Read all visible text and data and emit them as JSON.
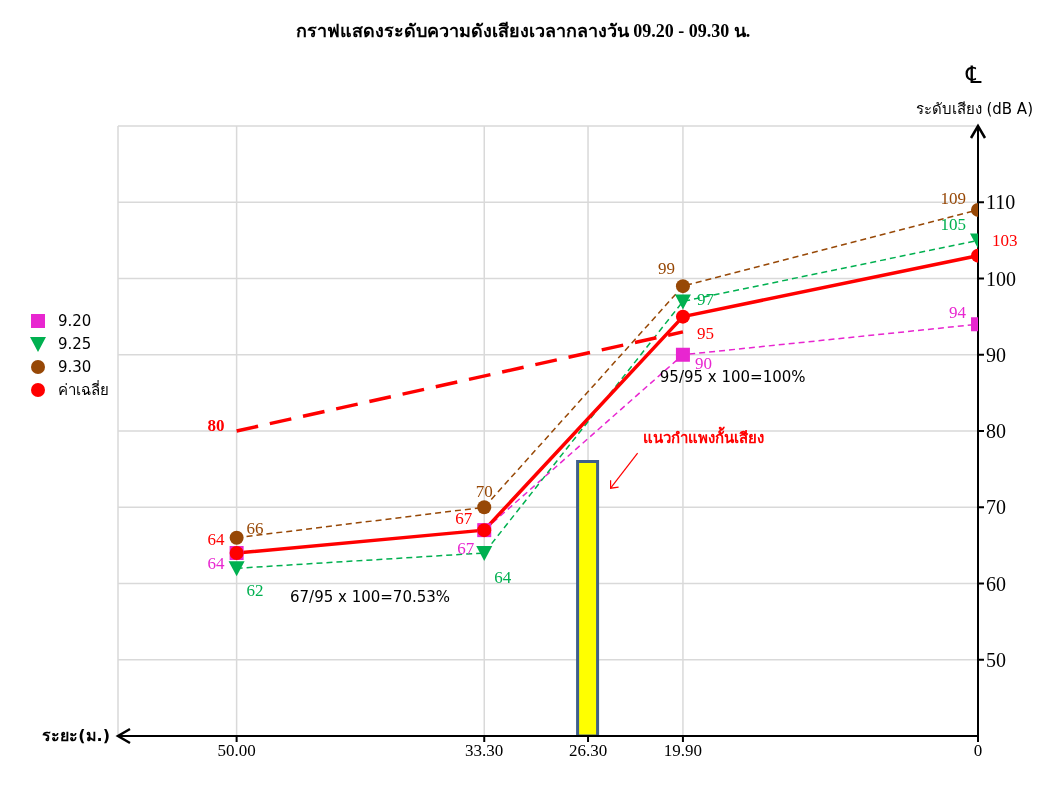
{
  "chart_data": {
    "type": "line",
    "title": "กราฟแสดงระดับความดังเสียงเวลากลางวัน 09.20 - 09.30 น.",
    "xlabel": "ระยะ(ม.)",
    "ylabel": "ระดับเสียง (dB A)",
    "xlim": [
      58,
      0
    ],
    "xticks": [
      {
        "value": 50,
        "label": "50.00"
      },
      {
        "value": 33.3,
        "label": "33.30"
      },
      {
        "value": 26.3,
        "label": "26.30"
      },
      {
        "value": 19.9,
        "label": "19.90"
      },
      0
    ],
    "ylim": [
      40,
      120
    ],
    "yticks": [
      50,
      60,
      70,
      80,
      90,
      100,
      110
    ],
    "grid": true,
    "legend": "left",
    "series": [
      {
        "name": "9.20",
        "color": "#e826d0",
        "x": [
          50,
          33.3,
          19.9,
          0
        ],
        "values": [
          64,
          67,
          90,
          94
        ],
        "value_labels": [
          "64",
          "67",
          "90",
          "94"
        ],
        "marker": "square",
        "line_style": "dashed"
      },
      {
        "name": "9.25",
        "color": "#00b050",
        "x": [
          50,
          33.3,
          19.9,
          0
        ],
        "values": [
          62,
          64,
          97,
          105
        ],
        "value_labels": [
          "62",
          "64",
          "97",
          "105"
        ],
        "marker": "triangle",
        "line_style": "dashed"
      },
      {
        "name": "9.30",
        "color": "#974806",
        "x": [
          50,
          33.3,
          19.9,
          0
        ],
        "values": [
          66,
          70,
          99,
          109
        ],
        "value_labels": [
          "66",
          "70",
          "99",
          "109"
        ],
        "marker": "circle",
        "line_style": "dashed"
      },
      {
        "name": "ค่าเฉลี่ย",
        "color": "#ff0000",
        "x": [
          50,
          33.3,
          19.9,
          0
        ],
        "values": [
          64,
          67,
          95,
          103
        ],
        "value_labels": [
          "64",
          "67",
          "95",
          "103"
        ],
        "marker": "circle",
        "line_style": "solid"
      },
      {
        "color": "#ff0000",
        "x": [
          50,
          19.9
        ],
        "values": [
          80,
          93
        ],
        "value_labels": [
          "80",
          null
        ],
        "marker": "none",
        "line_style": "dashed"
      },
      {
        "type": "bar",
        "color": "#ffff00",
        "x": [
          26.3
        ],
        "values": [
          76
        ]
      }
    ],
    "annotations": [
      "แนวกำแพงกั้นเสียง",
      "67/95 x 100=70.53%",
      "95/95 x 100=100%",
      "℄"
    ]
  }
}
